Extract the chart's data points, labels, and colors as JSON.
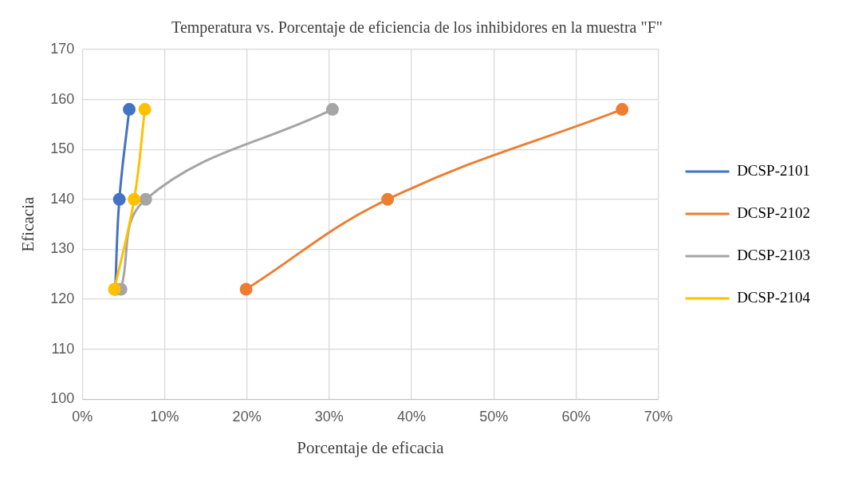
{
  "chart_data": {
    "type": "line",
    "title": "Temperatura vs. Porcentaje de eficiencia de los inhibidores en la muestra \"F\"",
    "xlabel": "Porcentaje de eficacia",
    "ylabel": "Eficacia",
    "series": [
      {
        "name": "DCSP-2101",
        "color": "#4472c4",
        "x": [
          4.0,
          4.5,
          5.7
        ],
        "values": [
          122,
          140,
          158
        ]
      },
      {
        "name": "DCSP-2102",
        "color": "#ed7d31",
        "x": [
          19.9,
          37.1,
          65.6
        ],
        "values": [
          122,
          140,
          158
        ]
      },
      {
        "name": "DCSP-2103",
        "color": "#a5a5a5",
        "x": [
          4.7,
          7.7,
          30.4
        ],
        "values": [
          122,
          140,
          158
        ]
      },
      {
        "name": "DCSP-2104",
        "color": "#ffc000",
        "x": [
          3.9,
          6.3,
          7.6
        ],
        "values": [
          122,
          140,
          158
        ]
      }
    ],
    "xlim": [
      0,
      70
    ],
    "xticks": [
      {
        "value": 0,
        "label": "0%"
      },
      {
        "value": 10,
        "label": "10%"
      },
      {
        "value": 20,
        "label": "20%"
      },
      {
        "value": 30,
        "label": "30%"
      },
      {
        "value": 40,
        "label": "40%"
      },
      {
        "value": 50,
        "label": "50%"
      },
      {
        "value": 60,
        "label": "60%"
      },
      {
        "value": 70,
        "label": "70%"
      }
    ],
    "ylim": [
      100,
      170
    ],
    "yticks": [
      100,
      110,
      120,
      130,
      140,
      150,
      160,
      170
    ],
    "grid": true,
    "legend": "right",
    "marker": "circle",
    "line_style": "solid"
  }
}
